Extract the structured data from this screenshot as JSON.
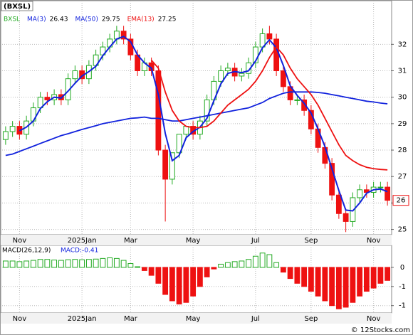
{
  "chart_data": [
    {
      "type": "candlestick",
      "title": "(BXSL)",
      "ticker": "BXSL",
      "categories": [
        null,
        null,
        "Nov",
        null,
        null,
        null,
        null,
        null,
        null,
        null,
        null,
        "2025Jan",
        null,
        null,
        null,
        null,
        null,
        null,
        "Mar",
        null,
        null,
        null,
        null,
        null,
        null,
        null,
        null,
        "May",
        null,
        null,
        null,
        null,
        null,
        null,
        null,
        null,
        "Jul",
        null,
        null,
        null,
        null,
        null,
        null,
        null,
        "Sep",
        null,
        null,
        null,
        null,
        null,
        null,
        null,
        null,
        "Nov",
        null,
        null
      ],
      "opens": [
        28.4,
        28.7,
        28.9,
        28.6,
        29.1,
        29.6,
        30.0,
        29.9,
        30.1,
        29.9,
        30.7,
        31.0,
        30.7,
        31.2,
        31.6,
        31.9,
        32.2,
        32.5,
        32.2,
        31.6,
        31.0,
        31.3,
        31.0,
        28.0,
        26.9,
        27.9,
        28.6,
        28.9,
        28.6,
        29.1,
        29.9,
        30.6,
        31.0,
        31.1,
        30.8,
        30.9,
        31.3,
        31.9,
        32.4,
        32.2,
        31.0,
        30.4,
        29.9,
        29.9,
        29.5,
        28.8,
        28.1,
        27.5,
        26.3,
        25.6,
        25.3,
        26.2,
        26.5,
        26.4,
        26.6,
        26.6
      ],
      "highs": [
        28.9,
        29.1,
        29.1,
        29.3,
        29.8,
        30.2,
        30.2,
        30.3,
        30.3,
        30.9,
        31.2,
        31.2,
        31.4,
        31.8,
        32.1,
        32.4,
        32.7,
        32.7,
        32.4,
        31.8,
        31.5,
        31.5,
        31.2,
        28.2,
        27.5,
        28.1,
        28.8,
        29.1,
        29.3,
        30.1,
        30.8,
        31.2,
        31.3,
        31.3,
        31.1,
        31.5,
        32.1,
        32.6,
        32.7,
        32.4,
        31.2,
        30.6,
        30.1,
        30.1,
        29.7,
        29.0,
        28.3,
        27.7,
        26.5,
        25.8,
        26.4,
        26.7,
        26.7,
        26.8,
        26.8,
        26.8
      ],
      "lows": [
        28.2,
        28.5,
        28.4,
        28.4,
        28.9,
        29.4,
        29.7,
        29.7,
        29.7,
        29.7,
        30.5,
        30.5,
        30.5,
        31.0,
        31.4,
        31.7,
        32.0,
        32.0,
        31.4,
        30.8,
        30.8,
        30.8,
        27.8,
        25.3,
        26.7,
        27.7,
        28.4,
        28.4,
        28.4,
        28.9,
        29.7,
        30.4,
        30.8,
        30.6,
        30.6,
        30.7,
        31.1,
        31.7,
        32.0,
        30.8,
        30.2,
        29.7,
        29.7,
        29.3,
        28.6,
        27.9,
        27.3,
        26.1,
        25.4,
        24.9,
        25.1,
        26.0,
        26.2,
        26.2,
        26.4,
        25.9
      ],
      "closes": [
        28.7,
        28.9,
        28.6,
        29.1,
        29.6,
        30.0,
        29.9,
        30.1,
        29.9,
        30.7,
        31.0,
        30.7,
        31.2,
        31.6,
        31.9,
        32.2,
        32.5,
        32.2,
        31.6,
        31.0,
        31.3,
        31.0,
        28.0,
        26.9,
        27.9,
        28.6,
        28.9,
        28.6,
        29.1,
        29.9,
        30.6,
        31.0,
        31.1,
        30.8,
        30.9,
        31.3,
        31.9,
        32.4,
        32.2,
        31.0,
        30.4,
        29.9,
        29.9,
        29.5,
        28.8,
        28.1,
        27.5,
        26.3,
        25.6,
        25.3,
        26.2,
        26.5,
        26.4,
        26.6,
        26.6,
        26.1
      ],
      "up_color": "#22aa22",
      "down_color": "#ee1111",
      "last_label": "26",
      "series": [
        {
          "name": "MA(3)",
          "legend_value": "26.43",
          "color": "#1122dd",
          "values": [
            null,
            null,
            28.73,
            28.87,
            29.1,
            29.57,
            29.83,
            30.0,
            29.97,
            30.23,
            30.53,
            30.8,
            30.97,
            31.17,
            31.57,
            31.9,
            32.2,
            32.3,
            32.1,
            31.6,
            31.3,
            31.1,
            30.1,
            28.63,
            27.6,
            27.8,
            28.47,
            28.7,
            28.87,
            29.2,
            29.87,
            30.5,
            30.9,
            30.97,
            30.93,
            31.0,
            31.37,
            31.87,
            32.17,
            31.87,
            31.2,
            30.43,
            30.07,
            29.77,
            29.4,
            28.8,
            28.13,
            27.3,
            26.47,
            25.73,
            25.7,
            26.0,
            26.37,
            26.5,
            26.53,
            26.43
          ]
        },
        {
          "name": "MA(50)",
          "legend_value": "29.75",
          "color": "#1122dd",
          "values": [
            27.8,
            27.85,
            27.95,
            28.05,
            28.15,
            28.25,
            28.35,
            28.45,
            28.55,
            28.62,
            28.7,
            28.78,
            28.85,
            28.92,
            29.0,
            29.05,
            29.1,
            29.15,
            29.2,
            29.22,
            29.25,
            29.2,
            29.2,
            29.15,
            29.1,
            29.1,
            29.15,
            29.2,
            29.25,
            29.3,
            29.35,
            29.4,
            29.45,
            29.5,
            29.55,
            29.6,
            29.7,
            29.8,
            29.95,
            30.05,
            30.15,
            30.2,
            30.2,
            30.2,
            30.2,
            30.18,
            30.15,
            30.1,
            30.05,
            30.0,
            29.95,
            29.9,
            29.85,
            29.82,
            29.78,
            29.75
          ]
        },
        {
          "name": "EMA(13)",
          "legend_value": "27.25",
          "color": "#ee1111",
          "values": [
            null,
            null,
            null,
            null,
            null,
            null,
            null,
            null,
            null,
            null,
            null,
            null,
            null,
            null,
            null,
            null,
            null,
            null,
            null,
            null,
            null,
            31.4,
            31.1,
            30.2,
            29.5,
            29.1,
            28.9,
            28.85,
            28.85,
            28.9,
            29.1,
            29.4,
            29.7,
            29.9,
            30.1,
            30.3,
            30.6,
            31.0,
            31.5,
            31.9,
            31.6,
            31.1,
            30.7,
            30.4,
            30.1,
            29.7,
            29.2,
            28.7,
            28.2,
            27.8,
            27.6,
            27.45,
            27.35,
            27.3,
            27.27,
            27.25
          ]
        }
      ],
      "ylim": [
        24.8,
        33.65
      ],
      "yticks": [
        25,
        26,
        27,
        28,
        29,
        30,
        31,
        32
      ],
      "grid": true
    },
    {
      "type": "histogram-bar",
      "title": "MACD(26,12,9)",
      "value_label": "MACD:-0.41",
      "up_color": "#22aa22",
      "down_color": "#ee1111",
      "values": [
        0.2,
        0.2,
        0.18,
        0.2,
        0.22,
        0.25,
        0.25,
        0.23,
        0.22,
        0.24,
        0.25,
        0.24,
        0.25,
        0.26,
        0.28,
        0.3,
        0.28,
        0.22,
        0.12,
        0.02,
        -0.1,
        -0.25,
        -0.5,
        -0.85,
        -1.05,
        -1.15,
        -1.1,
        -0.9,
        -0.6,
        -0.3,
        -0.05,
        0.1,
        0.15,
        0.18,
        0.2,
        0.25,
        0.35,
        0.45,
        0.4,
        0.15,
        -0.15,
        -0.35,
        -0.5,
        -0.6,
        -0.75,
        -0.9,
        -1.05,
        -1.2,
        -1.3,
        -1.25,
        -1.1,
        -0.9,
        -0.75,
        -0.65,
        -0.5,
        -0.41
      ],
      "ylim": [
        -1.43,
        0.69
      ],
      "yticks": [
        0,
        {
          "value": -0.6,
          "label": "-1"
        },
        {
          "value": -1.2,
          "label": "-1"
        }
      ],
      "grid": true
    }
  ],
  "footer": "© 12Stocks.com"
}
